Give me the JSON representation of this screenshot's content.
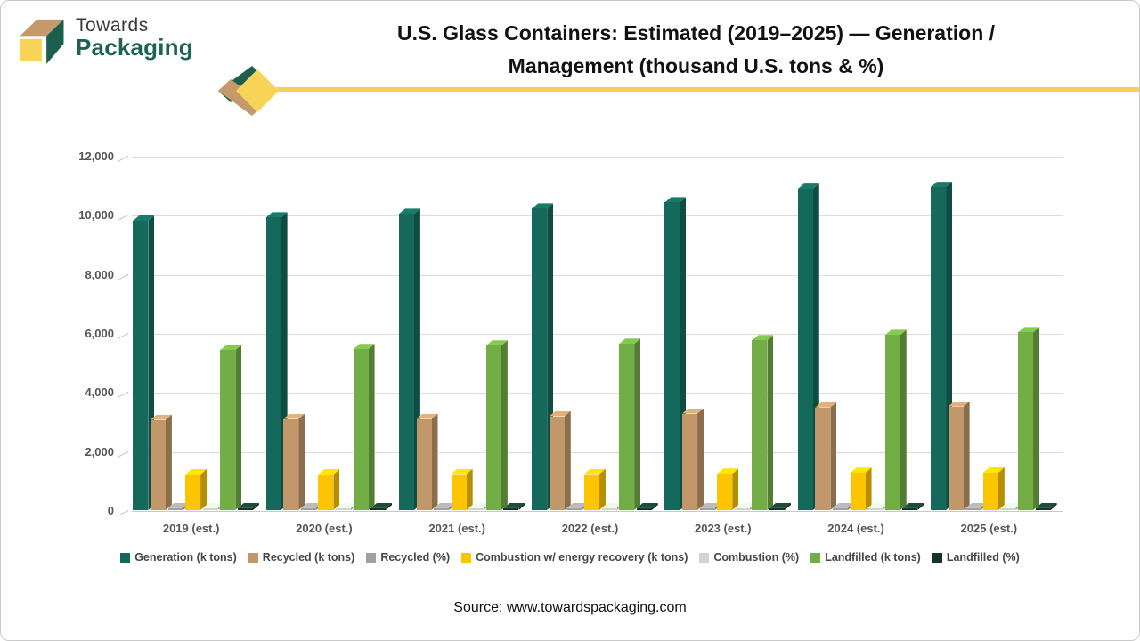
{
  "brand": {
    "name_top": "Towards",
    "name_bottom": "Packaging",
    "colors": {
      "teal": "#1c5f4e",
      "tan": "#c49a6c",
      "yellow": "#f7d358"
    }
  },
  "header": {
    "title_line1": "U.S. Glass Containers: Estimated (2019–2025) — Generation /",
    "title_line2": "Management (thousand U.S. tons & %)"
  },
  "source": "Source: www.towardspackaging.com",
  "chart_data": {
    "type": "bar",
    "title": "U.S. Glass Containers: Estimated (2019–2025) — Generation / Management (thousand U.S. tons & %)",
    "categories": [
      "2019 (est.)",
      "2020 (est.)",
      "2021 (est.)",
      "2022 (est.)",
      "2023 (est.)",
      "2024 (est.)",
      "2025 (est.)"
    ],
    "series": [
      {
        "name": "Generation (k tons)",
        "color": "#15695a",
        "values": [
          9800,
          9910,
          10030,
          10210,
          10420,
          10880,
          10940
        ]
      },
      {
        "name": "Recycled (k tons)",
        "color": "#c2986a",
        "values": [
          3060,
          3090,
          3090,
          3180,
          3270,
          3480,
          3510
        ]
      },
      {
        "name": "Recycled (%)",
        "color": "#a0a0a0",
        "values": [
          31.2,
          31.2,
          30.8,
          31.1,
          31.4,
          32.0,
          32.1
        ]
      },
      {
        "name": "Combustion w/ energy recovery (k tons)",
        "color": "#fdc500",
        "values": [
          1210,
          1210,
          1220,
          1220,
          1230,
          1260,
          1270
        ]
      },
      {
        "name": "Combustion (%)",
        "color": "#ccd6cc",
        "values": [
          12.3,
          12.2,
          12.2,
          12.0,
          11.8,
          11.6,
          11.6
        ]
      },
      {
        "name": "Landfilled (k tons)",
        "color": "#72ad45",
        "values": [
          5420,
          5450,
          5570,
          5630,
          5750,
          5930,
          6020
        ]
      },
      {
        "name": "Landfilled (%)",
        "color": "#143527",
        "values": [
          55.3,
          55.0,
          55.5,
          55.1,
          55.2,
          54.5,
          55.0
        ]
      }
    ],
    "xlabel": "",
    "ylabel": "",
    "ylim": [
      0,
      12000
    ],
    "ytick_interval": 2000,
    "ytick_labels": [
      "0",
      "2,000",
      "4,000",
      "6,000",
      "8,000",
      "10,000",
      "12,000"
    ],
    "grid": true,
    "legend_position": "bottom"
  }
}
